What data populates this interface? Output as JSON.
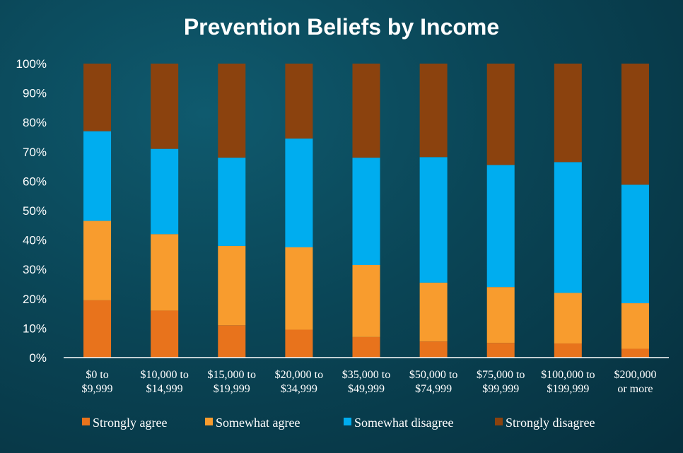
{
  "chart_data": {
    "type": "bar",
    "stacked": true,
    "title": "Prevention Beliefs by Income",
    "categories": [
      [
        "$0 to",
        "$9,999"
      ],
      [
        "$10,000 to",
        "$14,999"
      ],
      [
        "$15,000 to",
        "$19,999"
      ],
      [
        "$20,000 to",
        "$34,999"
      ],
      [
        "$35,000 to",
        "$49,999"
      ],
      [
        "$50,000 to",
        "$74,999"
      ],
      [
        "$75,000 to",
        "$99,999"
      ],
      [
        "$100,000 to",
        "$199,999"
      ],
      [
        "$200,000",
        "or more"
      ]
    ],
    "series": [
      {
        "name": "Strongly agree",
        "color": "#e8731c",
        "values": [
          19.5,
          16,
          11,
          9.5,
          7,
          5.5,
          5,
          4.8,
          3
        ]
      },
      {
        "name": "Somewhat agree",
        "color": "#f89c2e",
        "values": [
          27,
          26,
          27,
          28,
          24.5,
          20,
          19,
          17.2,
          15.5
        ]
      },
      {
        "name": "Somewhat disagree",
        "color": "#00adef",
        "values": [
          30.5,
          29,
          30,
          37,
          36.5,
          42.7,
          41.5,
          44.5,
          40.3
        ]
      },
      {
        "name": "Strongly disagree",
        "color": "#8b420e",
        "values": [
          23,
          29,
          32,
          25.5,
          32,
          31.8,
          34.5,
          33.5,
          41.2
        ]
      }
    ],
    "yticks": [
      "0%",
      "10%",
      "20%",
      "30%",
      "40%",
      "50%",
      "60%",
      "70%",
      "80%",
      "90%",
      "100%"
    ],
    "ylim": [
      0,
      100
    ],
    "legend_position": "bottom"
  }
}
